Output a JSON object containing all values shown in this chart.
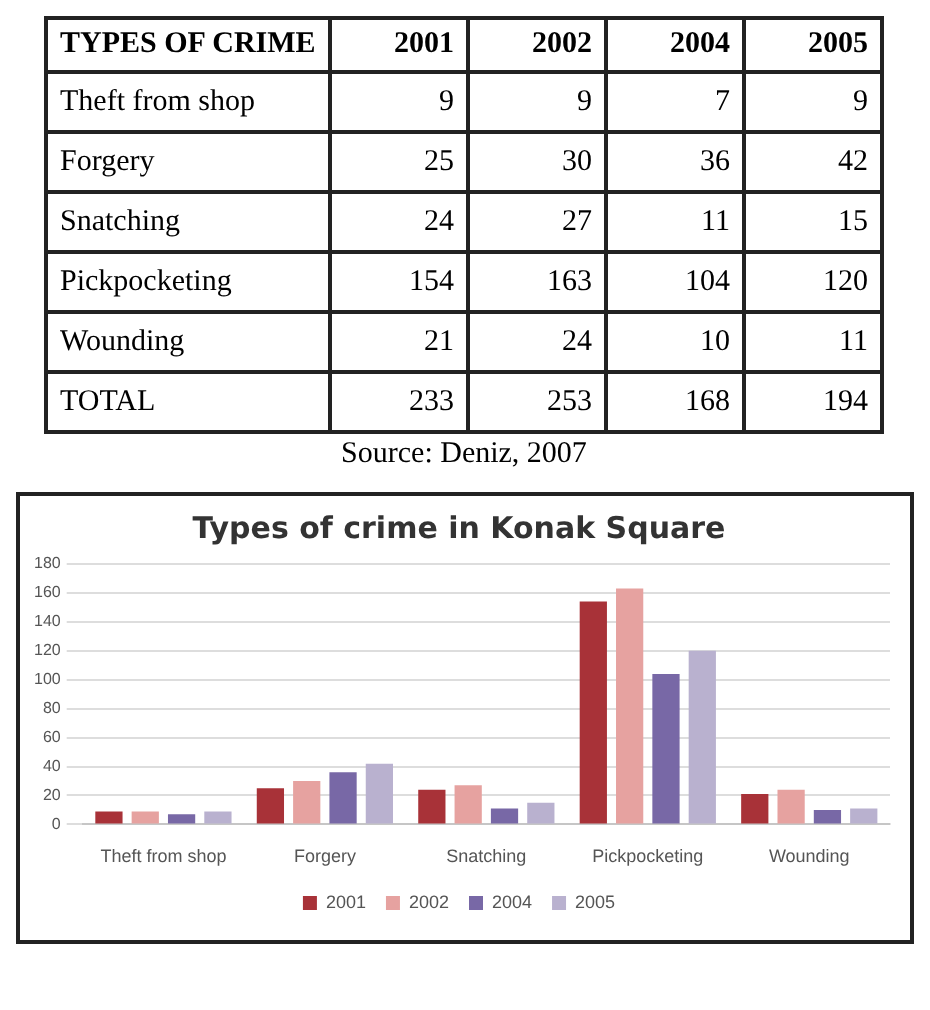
{
  "chart_data": [
    {
      "type": "heatmap",
      "ylabel": "TYPES OF CRIME",
      "categories": [
        "2001",
        "2002",
        "2004",
        "2005"
      ],
      "y_categories": [
        "Theft from shop",
        "Forgery",
        "Snatching",
        "Pickpocketing",
        "Wounding",
        "TOTAL"
      ],
      "cells": [
        [
          9,
          9,
          7,
          9
        ],
        [
          25,
          30,
          36,
          42
        ],
        [
          24,
          27,
          11,
          15
        ],
        [
          154,
          163,
          104,
          120
        ],
        [
          21,
          24,
          10,
          11
        ],
        [
          233,
          253,
          168,
          194
        ]
      ],
      "data_labels": true,
      "annotations": [
        "Source: Deniz, 2007"
      ]
    },
    {
      "type": "bar",
      "title": "Types of crime in Konak Square",
      "categories": [
        "Theft from shop",
        "Forgery",
        "Snatching",
        "Pickpocketing",
        "Wounding"
      ],
      "series": [
        {
          "name": "2001",
          "color": "#a83238",
          "values": [
            9,
            25,
            24,
            154,
            21
          ]
        },
        {
          "name": "2002",
          "color": "#e6a2a0",
          "values": [
            9,
            30,
            27,
            163,
            24
          ]
        },
        {
          "name": "2004",
          "color": "#7868a6",
          "values": [
            7,
            36,
            11,
            104,
            10
          ]
        },
        {
          "name": "2005",
          "color": "#b9b1cf",
          "values": [
            9,
            42,
            15,
            120,
            11
          ]
        }
      ],
      "ylim": [
        0,
        180
      ],
      "yticks": [
        0,
        20,
        40,
        60,
        80,
        100,
        120,
        140,
        160,
        180
      ],
      "grid": "y",
      "legend": "bottom"
    }
  ]
}
